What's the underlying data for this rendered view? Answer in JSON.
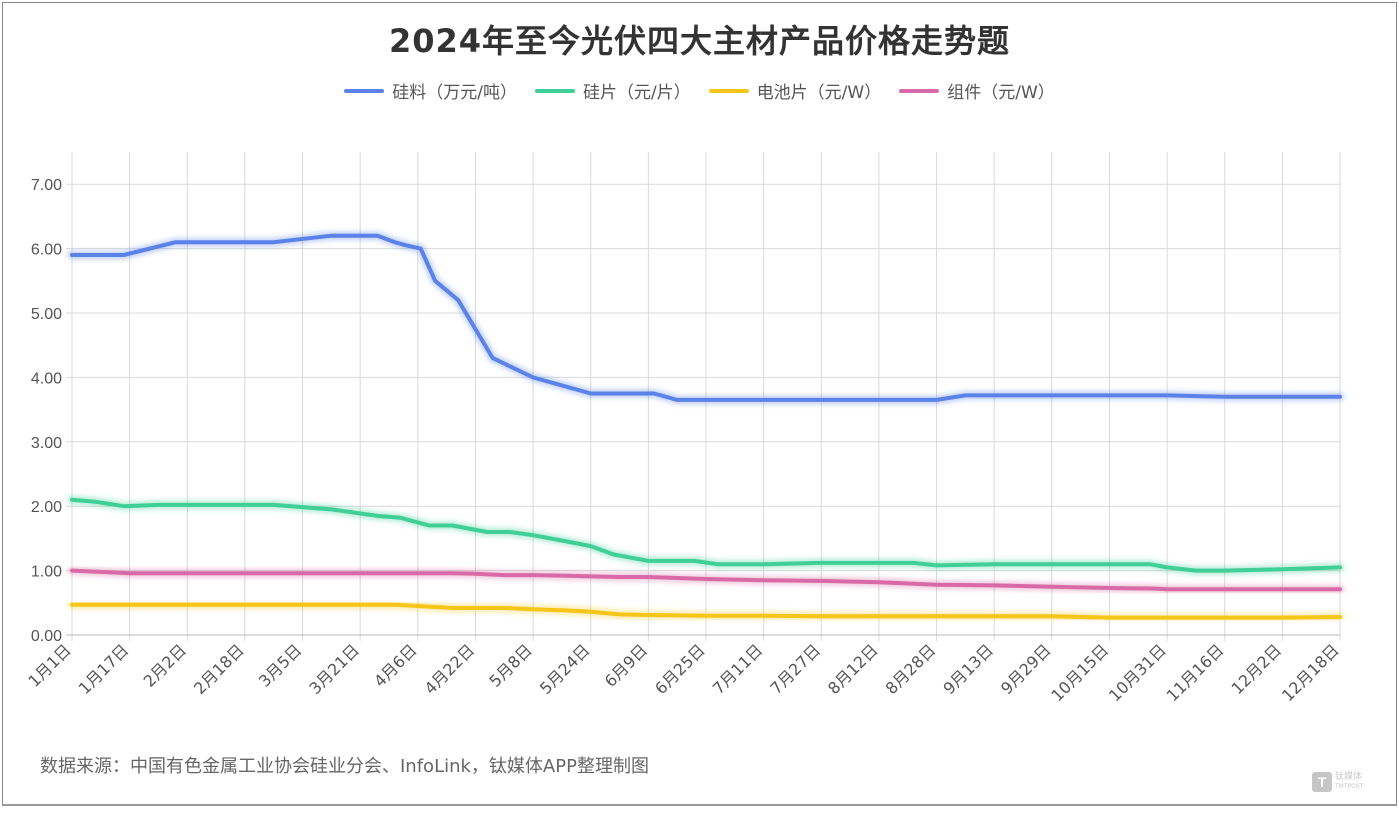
{
  "chart_data": {
    "type": "line",
    "title": "2024年至今光伏四大主材产品价格走势题",
    "categories": [
      "1月1日",
      "1月17日",
      "2月2日",
      "2月18日",
      "3月5日",
      "3月21日",
      "4月6日",
      "4月22日",
      "5月8日",
      "5月24日",
      "6月9日",
      "6月25日",
      "7月11日",
      "7月27日",
      "8月12日",
      "8月28日",
      "9月13日",
      "9月29日",
      "10月15日",
      "10月31日",
      "11月16日",
      "12月2日",
      "12月18日"
    ],
    "yticks": [
      "0.00",
      "1.00",
      "2.00",
      "3.00",
      "4.00",
      "5.00",
      "6.00",
      "7.00"
    ],
    "ylim": [
      0,
      7.5
    ],
    "grid": true,
    "legend_position": "top",
    "series": [
      {
        "name": "硅料（万元/吨）",
        "color": "#5b82e8",
        "x": [
          0,
          0.9,
          1.8,
          2.5,
          3.5,
          4.5,
          5.3,
          5.6,
          5.8,
          6.05,
          6.3,
          6.7,
          7.3,
          8.0,
          9.0,
          10.1,
          10.5,
          12.0,
          13.5,
          15.0,
          15.5,
          17.0,
          19.0,
          20.0,
          22.0
        ],
        "values": [
          5.9,
          5.9,
          6.1,
          6.1,
          6.1,
          6.2,
          6.2,
          6.1,
          6.05,
          6.0,
          5.5,
          5.2,
          4.3,
          4.0,
          3.75,
          3.75,
          3.65,
          3.65,
          3.65,
          3.65,
          3.72,
          3.72,
          3.72,
          3.7,
          3.7
        ]
      },
      {
        "name": "硅片（元/片）",
        "color": "#3fcf97",
        "x": [
          0,
          0.4,
          0.9,
          1.5,
          2.5,
          3.5,
          4.5,
          5.3,
          5.7,
          6.2,
          6.6,
          7.2,
          7.6,
          8.0,
          8.6,
          9.0,
          9.4,
          10.0,
          10.8,
          11.2,
          12.0,
          13.0,
          14.0,
          14.6,
          15.0,
          16.0,
          17.0,
          18.0,
          18.7,
          19.0,
          19.5,
          20.0,
          21.0,
          22.0
        ],
        "values": [
          2.1,
          2.07,
          2.0,
          2.02,
          2.02,
          2.02,
          1.95,
          1.85,
          1.82,
          1.7,
          1.7,
          1.6,
          1.6,
          1.55,
          1.45,
          1.38,
          1.25,
          1.15,
          1.15,
          1.1,
          1.1,
          1.12,
          1.12,
          1.12,
          1.08,
          1.1,
          1.1,
          1.1,
          1.1,
          1.05,
          1.0,
          1.0,
          1.02,
          1.05
        ]
      },
      {
        "name": "电池片（元/W）",
        "color": "#f5c518",
        "x": [
          0,
          1.0,
          2.0,
          3.0,
          4.0,
          5.0,
          5.6,
          6.0,
          6.6,
          7.5,
          8.0,
          8.6,
          9.0,
          9.5,
          10.0,
          11.0,
          12.0,
          13.0,
          14.0,
          15.0,
          16.0,
          17.0,
          18.0,
          19.0,
          20.0,
          21.0,
          22.0
        ],
        "values": [
          0.47,
          0.47,
          0.47,
          0.47,
          0.47,
          0.47,
          0.47,
          0.45,
          0.42,
          0.42,
          0.4,
          0.38,
          0.36,
          0.32,
          0.31,
          0.3,
          0.3,
          0.29,
          0.29,
          0.29,
          0.29,
          0.29,
          0.27,
          0.27,
          0.27,
          0.27,
          0.28
        ]
      },
      {
        "name": "组件（元/W）",
        "color": "#d96aa7",
        "x": [
          0,
          1.0,
          2.0,
          3.0,
          4.0,
          5.0,
          6.0,
          6.6,
          7.0,
          7.5,
          8.0,
          8.6,
          9.0,
          9.5,
          10.0,
          11.0,
          12.0,
          13.0,
          14.0,
          15.0,
          16.0,
          17.0,
          18.0,
          18.8,
          19.0,
          20.0,
          21.0,
          22.0
        ],
        "values": [
          1.0,
          0.96,
          0.96,
          0.96,
          0.96,
          0.96,
          0.96,
          0.96,
          0.95,
          0.93,
          0.93,
          0.92,
          0.91,
          0.9,
          0.9,
          0.87,
          0.85,
          0.84,
          0.82,
          0.78,
          0.77,
          0.75,
          0.73,
          0.72,
          0.71,
          0.71,
          0.71,
          0.71
        ]
      }
    ]
  },
  "legend": [
    {
      "label": "硅料（万元/吨）",
      "color": "#5b82e8"
    },
    {
      "label": "硅片（元/片）",
      "color": "#3fcf97"
    },
    {
      "label": "电池片（元/W）",
      "color": "#f5c518"
    },
    {
      "label": "组件（元/W）",
      "color": "#d96aa7"
    }
  ],
  "source_text": "数据来源：中国有色金属工业协会硅业分会、InfoLink，钛媒体APP整理制图",
  "watermark": {
    "logo_letter": "T",
    "brand_cn": "钛媒体",
    "brand_en": "TMTPOST"
  }
}
